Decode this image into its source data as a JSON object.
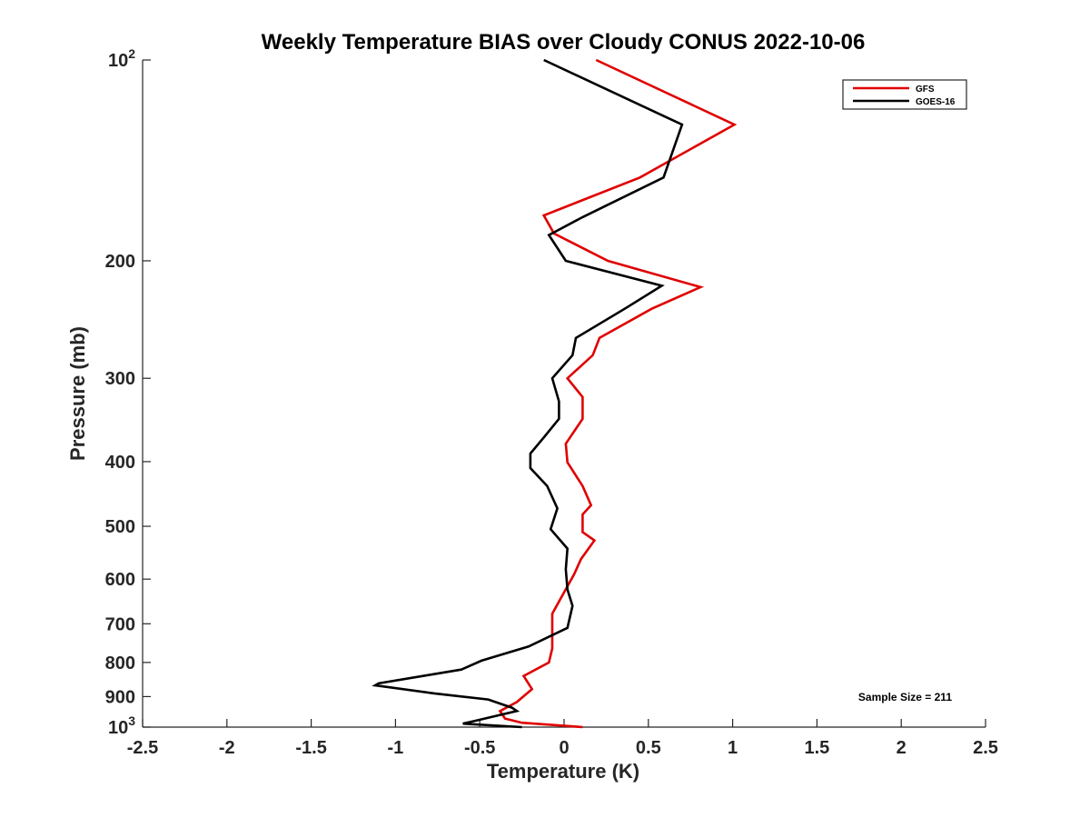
{
  "chart_data": {
    "type": "line",
    "title": "Weekly Temperature BIAS over Cloudy CONUS 2022-10-06",
    "xlabel": "Temperature (K)",
    "ylabel": "Pressure (mb)",
    "xlim": [
      -2.5,
      2.5
    ],
    "ylim": [
      100,
      1000
    ],
    "y_scale": "log",
    "y_reversed": true,
    "x_ticks": [
      "-2.5",
      "-2",
      "-1.5",
      "-1",
      "-0.5",
      "0",
      "0.5",
      "1",
      "1.5",
      "2",
      "2.5"
    ],
    "y_ticks": [
      {
        "value": 100,
        "label": "10",
        "sup": "2"
      },
      {
        "value": 200,
        "label": "200"
      },
      {
        "value": 300,
        "label": "300"
      },
      {
        "value": 400,
        "label": "400"
      },
      {
        "value": 500,
        "label": "500"
      },
      {
        "value": 600,
        "label": "600"
      },
      {
        "value": 700,
        "label": "700"
      },
      {
        "value": 800,
        "label": "800"
      },
      {
        "value": 900,
        "label": "900"
      },
      {
        "value": 1000,
        "label": "10",
        "sup": "3"
      }
    ],
    "grid": false,
    "legend_position": "top-right",
    "annotation": "Sample Size = 211",
    "series": [
      {
        "name": "GFS",
        "color": "#e00000",
        "points": [
          [
            0.19,
            100
          ],
          [
            1.01,
            125
          ],
          [
            0.45,
            150
          ],
          [
            -0.12,
            171
          ],
          [
            -0.06,
            182
          ],
          [
            0.26,
            200
          ],
          [
            0.81,
            219
          ],
          [
            0.52,
            236
          ],
          [
            0.21,
            261
          ],
          [
            0.17,
            277
          ],
          [
            0.02,
            300
          ],
          [
            0.11,
            320
          ],
          [
            0.11,
            345
          ],
          [
            0.01,
            376
          ],
          [
            0.02,
            401
          ],
          [
            0.11,
            435
          ],
          [
            0.16,
            465
          ],
          [
            0.11,
            480
          ],
          [
            0.11,
            510
          ],
          [
            0.18,
            525
          ],
          [
            0.1,
            560
          ],
          [
            0.06,
            590
          ],
          [
            0.0,
            628
          ],
          [
            -0.07,
            676
          ],
          [
            -0.07,
            720
          ],
          [
            -0.07,
            762
          ],
          [
            -0.09,
            800
          ],
          [
            -0.24,
            838
          ],
          [
            -0.19,
            877
          ],
          [
            -0.28,
            917
          ],
          [
            -0.38,
            946
          ],
          [
            -0.35,
            971
          ],
          [
            -0.25,
            985
          ],
          [
            0.11,
            1000
          ]
        ]
      },
      {
        "name": "GOES-16",
        "color": "#000000",
        "points": [
          [
            -0.12,
            100
          ],
          [
            0.7,
            125
          ],
          [
            0.59,
            150
          ],
          [
            0.11,
            172
          ],
          [
            -0.09,
            183
          ],
          [
            0.01,
            200
          ],
          [
            0.58,
            218
          ],
          [
            0.36,
            236
          ],
          [
            0.07,
            261
          ],
          [
            0.05,
            277
          ],
          [
            -0.07,
            300
          ],
          [
            -0.03,
            325
          ],
          [
            -0.03,
            345
          ],
          [
            -0.12,
            368
          ],
          [
            -0.2,
            389
          ],
          [
            -0.2,
            409
          ],
          [
            -0.1,
            435
          ],
          [
            -0.04,
            470
          ],
          [
            -0.08,
            505
          ],
          [
            0.02,
            540
          ],
          [
            0.01,
            580
          ],
          [
            0.02,
            622
          ],
          [
            0.05,
            658
          ],
          [
            0.02,
            710
          ],
          [
            -0.21,
            757
          ],
          [
            -0.49,
            795
          ],
          [
            -0.61,
            820
          ],
          [
            -1.1,
            860
          ],
          [
            -1.12,
            866
          ],
          [
            -0.77,
            890
          ],
          [
            -0.45,
            909
          ],
          [
            -0.31,
            935
          ],
          [
            -0.28,
            946
          ],
          [
            -0.54,
            980
          ],
          [
            -0.6,
            988
          ],
          [
            -0.25,
            1000
          ]
        ]
      }
    ]
  }
}
